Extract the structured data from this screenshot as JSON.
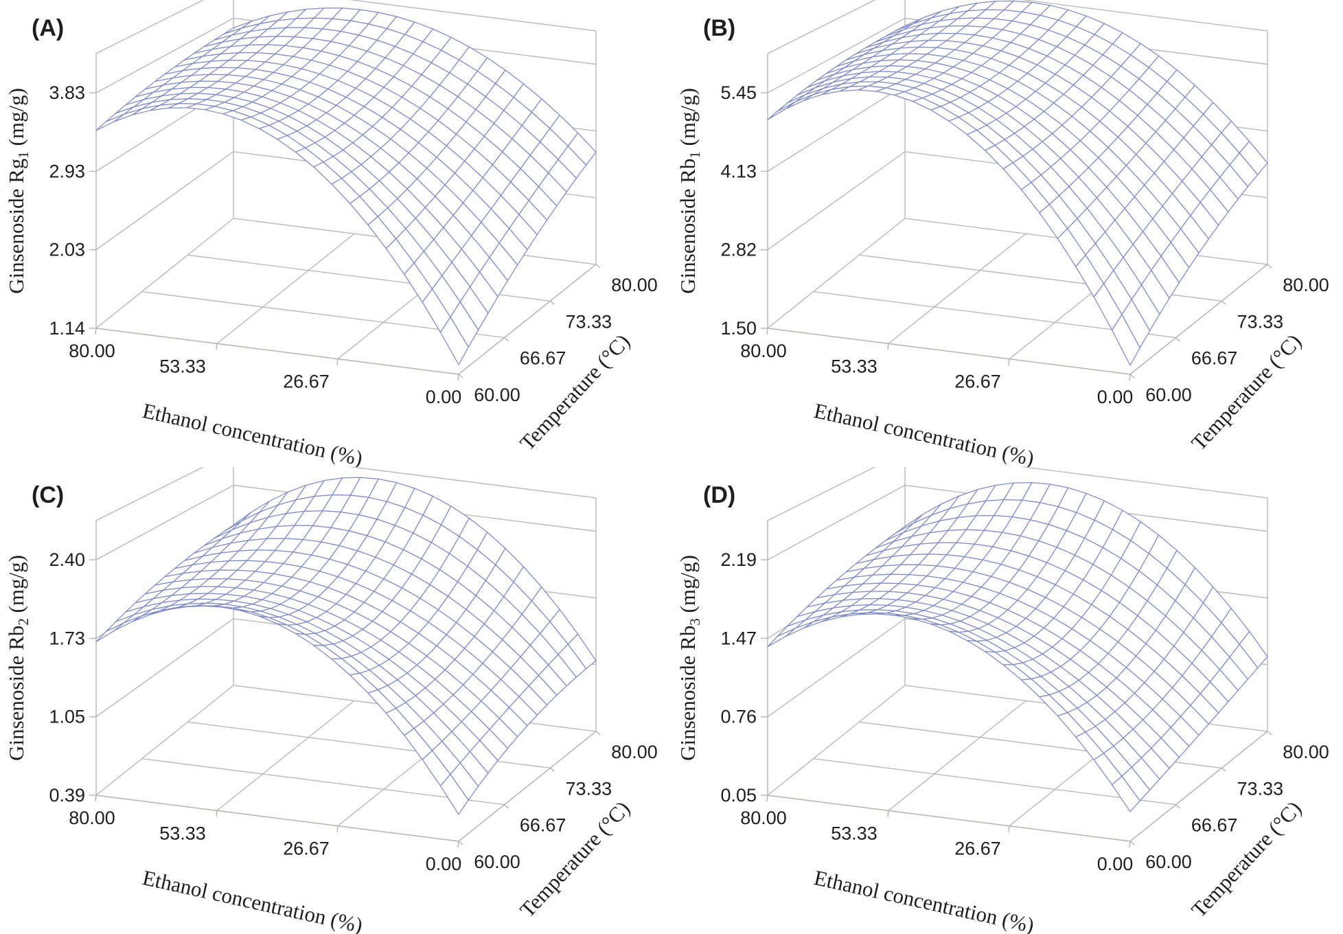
{
  "figure": {
    "description": "2x2 grid of 3D wireframe response-surface plots of ginsenoside content versus ethanol concentration and extraction temperature",
    "background": "#ffffff"
  },
  "colors": {
    "mesh": "#7f8ac3",
    "mesh_fill": "#ffffff",
    "frame": "#b4b4b1",
    "text": "#1e1e1e"
  },
  "shared_axes": {
    "ethanol": {
      "title": "Ethanol concentration (%)",
      "tick_labels": [
        "80.00",
        "53.33",
        "26.67",
        "0.00"
      ],
      "tick_values": [
        80,
        53.33,
        26.67,
        0
      ]
    },
    "temperature": {
      "title": "Temperature (°C)",
      "tick_labels": [
        "60.00",
        "66.67",
        "73.33",
        "80.00"
      ],
      "tick_values": [
        60,
        66.67,
        73.33,
        80
      ]
    }
  },
  "chart_data": [
    {
      "id": "A",
      "panel_label": "(A)",
      "type": "surface",
      "z_axis": {
        "title_prefix": "Ginsenoside Rg",
        "title_sub": "1",
        "title_suffix": " (mg/g)",
        "tick_labels": [
          "1.14",
          "2.03",
          "2.93",
          "3.83"
        ],
        "tick_values": [
          1.14,
          2.03,
          2.93,
          3.83
        ]
      },
      "surface": {
        "x_var": "ethanol 0-80 %",
        "y_var": "temperature 60-80 C",
        "corner_values": {
          "eth0_t60": 1.25,
          "eth80_t60": 3.4,
          "eth0_t80": 2.65,
          "eth80_t80": 3.7
        },
        "peak": {
          "value": 4.09,
          "ethanol": 42,
          "temperature": 80
        },
        "control_points": [
          [
            1.25,
            4.8,
            3.4
          ],
          [
            2.05,
            3.9,
            3.65
          ],
          [
            2.65,
            5.0,
            3.7
          ]
        ]
      }
    },
    {
      "id": "B",
      "panel_label": "(B)",
      "type": "surface",
      "z_axis": {
        "title_prefix": "Ginsenoside Rb",
        "title_sub": "1",
        "title_suffix": " (mg/g)",
        "tick_labels": [
          "1.50",
          "2.82",
          "4.13",
          "5.45"
        ],
        "tick_values": [
          1.5,
          2.82,
          4.13,
          5.45
        ]
      },
      "surface": {
        "x_var": "ethanol 0-80 %",
        "y_var": "temperature 60-80 C",
        "corner_values": {
          "eth0_t60": 1.65,
          "eth80_t60": 5.0,
          "eth0_t80": 3.5,
          "eth80_t80": 5.3
        },
        "peak": {
          "value": 5.95,
          "ethanol": 42,
          "temperature": 80
        },
        "control_points": [
          [
            1.65,
            7.4,
            5.0
          ],
          [
            2.83,
            6.2,
            5.35
          ],
          [
            3.5,
            7.5,
            5.3
          ]
        ]
      }
    },
    {
      "id": "C",
      "panel_label": "(C)",
      "type": "surface",
      "z_axis": {
        "title_prefix": "Ginsenoside Rb",
        "title_sub": "2",
        "title_suffix": " (mg/g)",
        "tick_labels": [
          "0.39",
          "1.05",
          "1.73",
          "2.40"
        ],
        "tick_values": [
          0.39,
          1.05,
          1.73,
          2.4
        ]
      },
      "surface": {
        "x_var": "ethanol 0-80 %",
        "y_var": "temperature 60-80 C",
        "corner_values": {
          "eth0_t60": 0.62,
          "eth80_t60": 1.7,
          "eth0_t80": 1.1,
          "eth80_t80": 2.0
        },
        "peak": {
          "value": 2.6,
          "ethanol": 42,
          "temperature": 80
        },
        "control_points": [
          [
            0.62,
            2.94,
            1.7
          ],
          [
            1.04,
            1.65,
            1.95
          ],
          [
            1.1,
            3.65,
            2.0
          ]
        ]
      }
    },
    {
      "id": "D",
      "panel_label": "(D)",
      "type": "surface",
      "z_axis": {
        "title_prefix": "Ginsenoside Rb",
        "title_sub": "3",
        "title_suffix": " (mg/g)",
        "tick_labels": [
          "0.05",
          "0.76",
          "1.47",
          "2.19"
        ],
        "tick_values": [
          0.05,
          0.76,
          1.47,
          2.19
        ]
      },
      "surface": {
        "x_var": "ethanol 0-80 %",
        "y_var": "temperature 60-80 C",
        "corner_values": {
          "eth0_t60": 0.32,
          "eth80_t60": 1.4,
          "eth0_t80": 0.85,
          "eth80_t80": 1.75
        },
        "peak": {
          "value": 2.35,
          "ethanol": 42,
          "temperature": 80
        },
        "control_points": [
          [
            0.32,
            2.64,
            1.4
          ],
          [
            0.52,
            1.41,
            1.67
          ],
          [
            0.85,
            3.4,
            1.75
          ]
        ]
      }
    }
  ]
}
